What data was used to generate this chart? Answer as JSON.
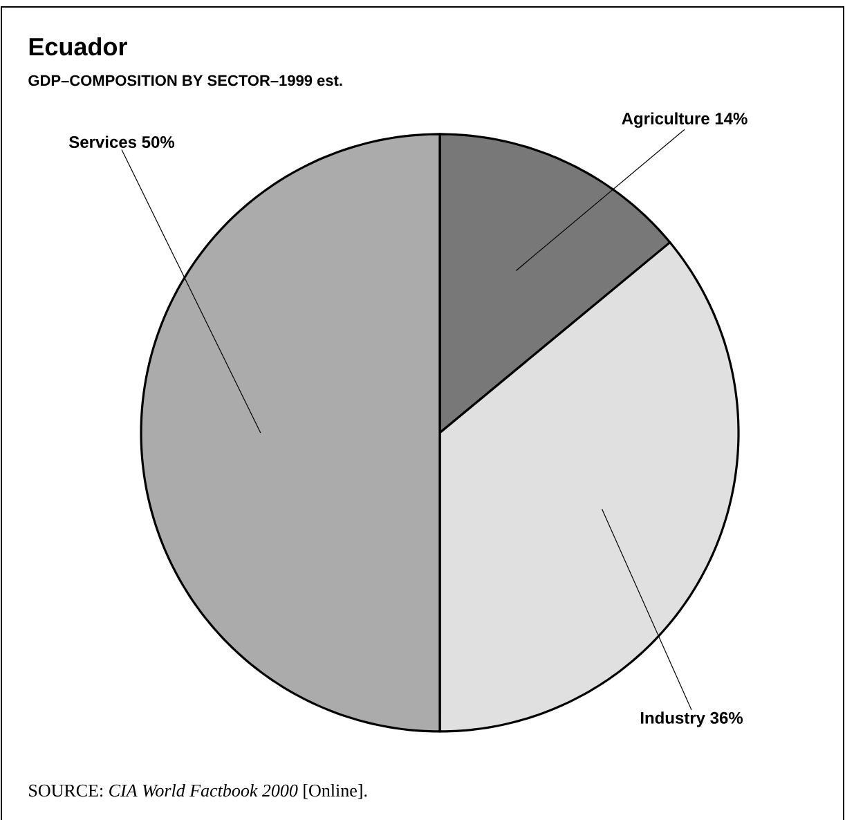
{
  "chart_data": {
    "type": "pie",
    "title": "Ecuador",
    "subtitle": "GDP–COMPOSITION BY SECTOR–1999 est.",
    "categories": [
      "Agriculture",
      "Industry",
      "Services"
    ],
    "values": [
      14,
      36,
      50
    ],
    "value_labels": [
      "14%",
      "36%",
      "50%"
    ],
    "colors": [
      "#787878",
      "#e0e0e0",
      "#ababab"
    ],
    "annotations": [
      "SOURCE: *CIA World Factbook 2000* [Online]."
    ]
  }
}
